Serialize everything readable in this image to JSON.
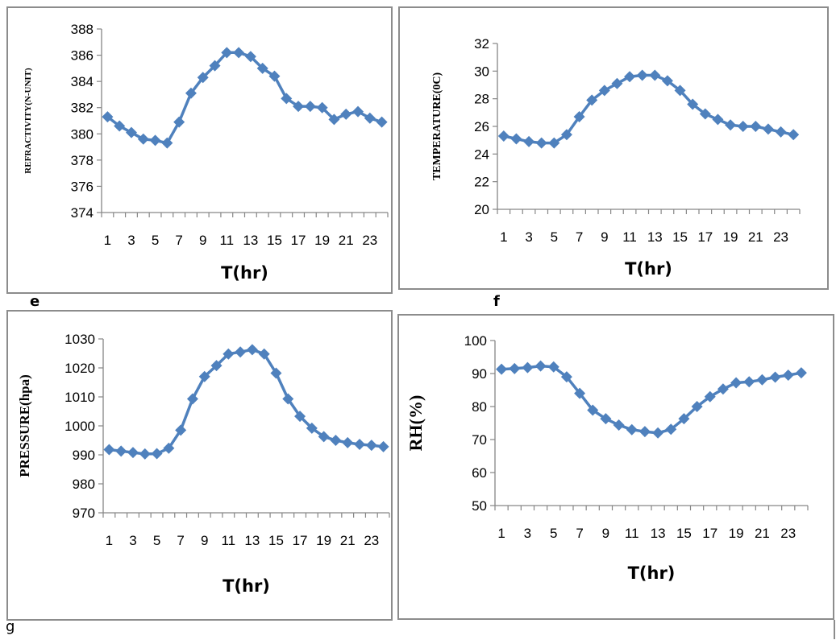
{
  "panel_letters": {
    "e": "e",
    "f": "f",
    "g": "g"
  },
  "chart_data": [
    {
      "type": "line",
      "xlabel": "T(hr)",
      "ylabel": "REFRACTIVITY(N-UNIT)",
      "ylim": [
        374,
        388
      ],
      "yticks": [
        374,
        376,
        378,
        380,
        382,
        384,
        386,
        388
      ],
      "xtick_labels": [
        "1",
        "3",
        "5",
        "7",
        "9",
        "11",
        "13",
        "15",
        "17",
        "19",
        "21",
        "23"
      ],
      "x": [
        1,
        2,
        3,
        4,
        5,
        6,
        7,
        8,
        9,
        10,
        11,
        12,
        13,
        14,
        15,
        16,
        17,
        18,
        19,
        20,
        21,
        22,
        23,
        24
      ],
      "values": [
        381.3,
        380.6,
        380.1,
        379.6,
        379.5,
        379.3,
        380.9,
        383.1,
        384.3,
        385.2,
        386.2,
        386.2,
        385.9,
        385.0,
        384.4,
        382.7,
        382.1,
        382.1,
        382.0,
        381.1,
        381.5,
        381.7,
        381.2,
        380.9
      ],
      "color": "#4f81bd",
      "marker": "diamond",
      "grid": false
    },
    {
      "type": "line",
      "xlabel": "T(hr)",
      "ylabel": "TEMPERATURE(0C)",
      "ylim": [
        20,
        32
      ],
      "yticks": [
        20,
        22,
        24,
        26,
        28,
        30,
        32
      ],
      "xtick_labels": [
        "1",
        "3",
        "5",
        "7",
        "9",
        "11",
        "13",
        "15",
        "17",
        "19",
        "21",
        "23"
      ],
      "x": [
        1,
        2,
        3,
        4,
        5,
        6,
        7,
        8,
        9,
        10,
        11,
        12,
        13,
        14,
        15,
        16,
        17,
        18,
        19,
        20,
        21,
        22,
        23,
        24
      ],
      "values": [
        25.3,
        25.1,
        24.9,
        24.8,
        24.8,
        25.4,
        26.7,
        27.9,
        28.6,
        29.1,
        29.6,
        29.7,
        29.7,
        29.3,
        28.6,
        27.6,
        26.9,
        26.5,
        26.1,
        26.0,
        26.0,
        25.8,
        25.6,
        25.4
      ],
      "color": "#4f81bd",
      "marker": "diamond",
      "grid": false
    },
    {
      "type": "line",
      "xlabel": "T(hr)",
      "ylabel": "PRESSURE(hpa)",
      "ylim": [
        970,
        1030
      ],
      "yticks": [
        970,
        980,
        990,
        1000,
        1010,
        1020,
        1030
      ],
      "xtick_labels": [
        "1",
        "3",
        "5",
        "7",
        "9",
        "11",
        "13",
        "15",
        "17",
        "19",
        "21",
        "23"
      ],
      "x": [
        1,
        2,
        3,
        4,
        5,
        6,
        7,
        8,
        9,
        10,
        11,
        12,
        13,
        14,
        15,
        16,
        17,
        18,
        19,
        20,
        21,
        22,
        23,
        24
      ],
      "values": [
        991.8,
        991.3,
        990.8,
        990.3,
        990.4,
        992.3,
        998.5,
        1009.3,
        1017.0,
        1020.8,
        1024.8,
        1025.5,
        1026.3,
        1024.8,
        1018.2,
        1009.3,
        1003.3,
        999.2,
        996.3,
        995.0,
        994.2,
        993.6,
        993.3,
        992.8
      ],
      "color": "#4f81bd",
      "marker": "diamond",
      "grid": false
    },
    {
      "type": "line",
      "xlabel": "T(hr)",
      "ylabel": "RH(%)",
      "ylim": [
        50,
        100
      ],
      "yticks": [
        50,
        60,
        70,
        80,
        90,
        100
      ],
      "xtick_labels": [
        "1",
        "3",
        "5",
        "7",
        "9",
        "11",
        "13",
        "15",
        "17",
        "19",
        "21",
        "23"
      ],
      "x": [
        1,
        2,
        3,
        4,
        5,
        6,
        7,
        8,
        9,
        10,
        11,
        12,
        13,
        14,
        15,
        16,
        17,
        18,
        19,
        20,
        21,
        22,
        23,
        24
      ],
      "values": [
        91.3,
        91.5,
        91.8,
        92.3,
        92.0,
        89.0,
        84.0,
        78.9,
        76.3,
        74.4,
        73.0,
        72.4,
        72.0,
        73.1,
        76.3,
        80.0,
        83.0,
        85.3,
        87.2,
        87.5,
        88.1,
        88.9,
        89.5,
        90.2
      ],
      "color": "#4f81bd",
      "marker": "diamond",
      "grid": false
    }
  ]
}
